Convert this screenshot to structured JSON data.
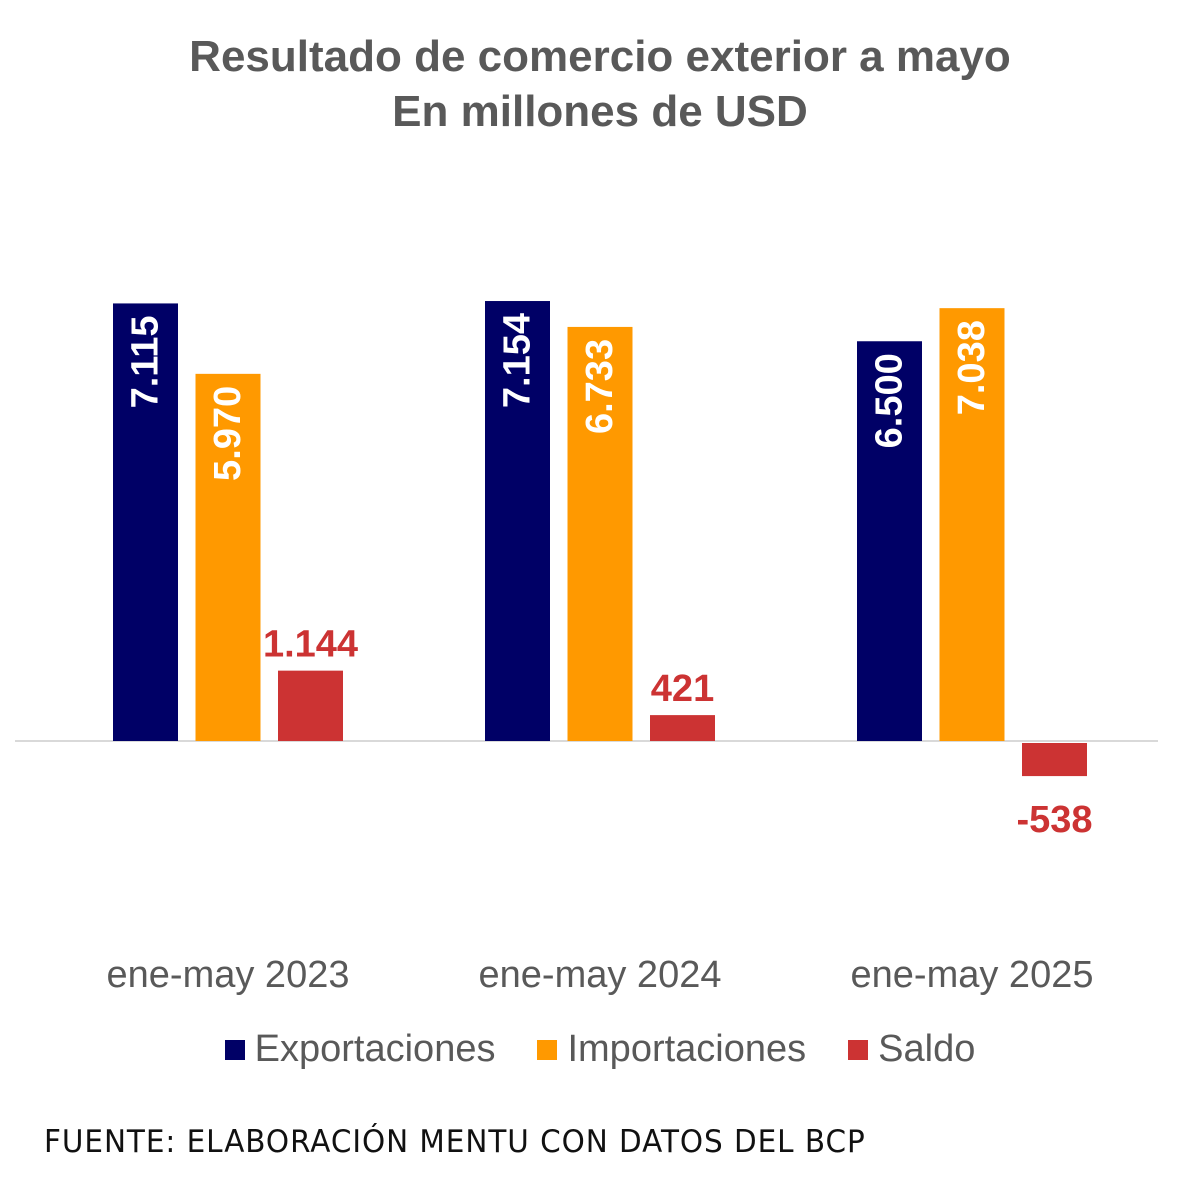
{
  "chart_data": {
    "type": "bar",
    "title": "Resultado de comercio exterior a mayo",
    "subtitle": "En millones de USD",
    "categories": [
      "ene-may 2023",
      "ene-may 2024",
      "ene-may 2025"
    ],
    "series": [
      {
        "name": "Exportaciones",
        "values": [
          7115,
          7154,
          6500
        ],
        "labels": [
          "7.115",
          "7.154",
          "6.500"
        ],
        "color": "#000066"
      },
      {
        "name": "Importaciones",
        "values": [
          5970,
          6733,
          7038
        ],
        "labels": [
          "5.970",
          "6.733",
          "7.038"
        ],
        "color": "#FF9900"
      },
      {
        "name": "Saldo",
        "values": [
          1144,
          421,
          -538
        ],
        "labels": [
          "1.144",
          "421",
          "-538"
        ],
        "color": "#CC3333"
      }
    ],
    "legend": "bottom",
    "grid": false
  },
  "source": "FUENTE: ELABORACIÓN MENTU CON DATOS DEL BCP"
}
